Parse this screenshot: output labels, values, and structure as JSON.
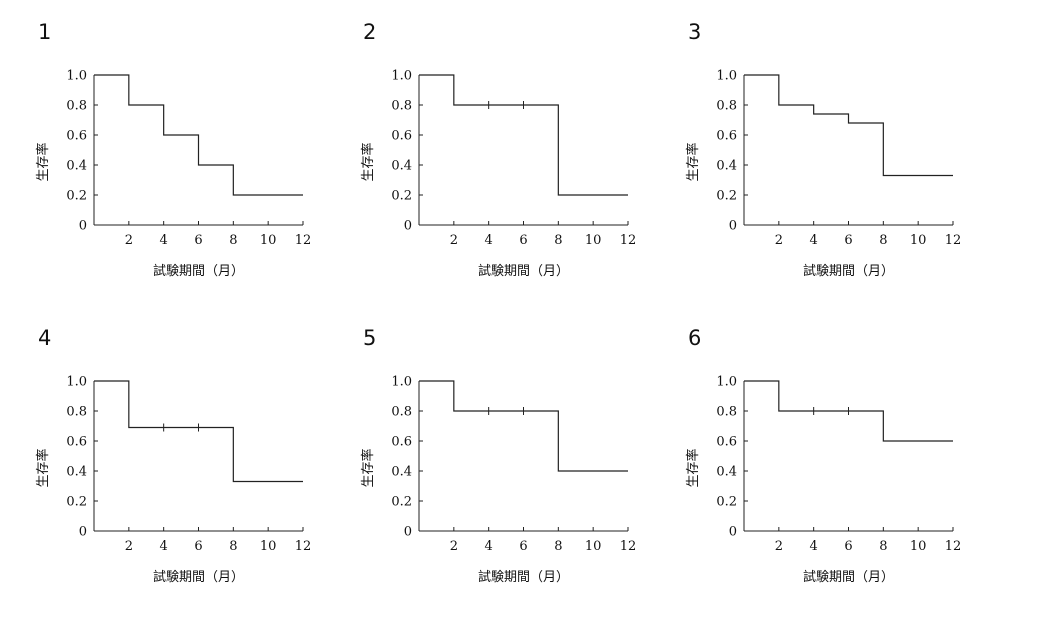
{
  "chart_data": [
    {
      "type": "line",
      "panel_label": "1",
      "xlabel": "試験期間（月）",
      "ylabel": "生存率",
      "xlim": [
        0,
        12
      ],
      "ylim": [
        0,
        1.0
      ],
      "x_ticks": [
        "2",
        "4",
        "6",
        "8",
        "10",
        "12"
      ],
      "y_ticks": [
        "0",
        "0.2",
        "0.4",
        "0.6",
        "0.8",
        "1.0"
      ],
      "step": {
        "x": [
          0,
          2,
          2,
          4,
          4,
          6,
          6,
          8,
          8,
          12
        ],
        "y": [
          1.0,
          1.0,
          0.8,
          0.8,
          0.6,
          0.6,
          0.4,
          0.4,
          0.2,
          0.2
        ]
      },
      "censor_marks": []
    },
    {
      "type": "line",
      "panel_label": "2",
      "xlabel": "試験期間（月）",
      "ylabel": "生存率",
      "xlim": [
        0,
        12
      ],
      "ylim": [
        0,
        1.0
      ],
      "x_ticks": [
        "2",
        "4",
        "6",
        "8",
        "10",
        "12"
      ],
      "y_ticks": [
        "0",
        "0.2",
        "0.4",
        "0.6",
        "0.8",
        "1.0"
      ],
      "step": {
        "x": [
          0,
          2,
          2,
          8,
          8,
          12
        ],
        "y": [
          1.0,
          1.0,
          0.8,
          0.8,
          0.2,
          0.2
        ]
      },
      "censor_marks": [
        {
          "x": 4,
          "y": 0.8
        },
        {
          "x": 6,
          "y": 0.8
        }
      ]
    },
    {
      "type": "line",
      "panel_label": "3",
      "xlabel": "試験期間（月）",
      "ylabel": "生存率",
      "xlim": [
        0,
        12
      ],
      "ylim": [
        0,
        1.0
      ],
      "x_ticks": [
        "2",
        "4",
        "6",
        "8",
        "10",
        "12"
      ],
      "y_ticks": [
        "0",
        "0.2",
        "0.4",
        "0.6",
        "0.8",
        "1.0"
      ],
      "step": {
        "x": [
          0,
          2,
          2,
          4,
          4,
          6,
          6,
          8,
          8,
          12
        ],
        "y": [
          1.0,
          1.0,
          0.8,
          0.8,
          0.74,
          0.74,
          0.68,
          0.68,
          0.33,
          0.33
        ]
      },
      "censor_marks": []
    },
    {
      "type": "line",
      "panel_label": "4",
      "xlabel": "試験期間（月）",
      "ylabel": "生存率",
      "xlim": [
        0,
        12
      ],
      "ylim": [
        0,
        1.0
      ],
      "x_ticks": [
        "2",
        "4",
        "6",
        "8",
        "10",
        "12"
      ],
      "y_ticks": [
        "0",
        "0.2",
        "0.4",
        "0.6",
        "0.8",
        "1.0"
      ],
      "step": {
        "x": [
          0,
          2,
          2,
          8,
          8,
          12
        ],
        "y": [
          1.0,
          1.0,
          0.69,
          0.69,
          0.33,
          0.33
        ]
      },
      "censor_marks": [
        {
          "x": 4,
          "y": 0.69
        },
        {
          "x": 6,
          "y": 0.69
        }
      ]
    },
    {
      "type": "line",
      "panel_label": "5",
      "xlabel": "試験期間（月）",
      "ylabel": "生存率",
      "xlim": [
        0,
        12
      ],
      "ylim": [
        0,
        1.0
      ],
      "x_ticks": [
        "2",
        "4",
        "6",
        "8",
        "10",
        "12"
      ],
      "y_ticks": [
        "0",
        "0.2",
        "0.4",
        "0.6",
        "0.8",
        "1.0"
      ],
      "step": {
        "x": [
          0,
          2,
          2,
          8,
          8,
          12
        ],
        "y": [
          1.0,
          1.0,
          0.8,
          0.8,
          0.4,
          0.4
        ]
      },
      "censor_marks": [
        {
          "x": 4,
          "y": 0.8
        },
        {
          "x": 6,
          "y": 0.8
        }
      ]
    },
    {
      "type": "line",
      "panel_label": "6",
      "xlabel": "試験期間（月）",
      "ylabel": "生存率",
      "xlim": [
        0,
        12
      ],
      "ylim": [
        0,
        1.0
      ],
      "x_ticks": [
        "2",
        "4",
        "6",
        "8",
        "10",
        "12"
      ],
      "y_ticks": [
        "0",
        "0.2",
        "0.4",
        "0.6",
        "0.8",
        "1.0"
      ],
      "step": {
        "x": [
          0,
          2,
          2,
          8,
          8,
          12
        ],
        "y": [
          1.0,
          1.0,
          0.8,
          0.8,
          0.6,
          0.6
        ]
      },
      "censor_marks": [
        {
          "x": 4,
          "y": 0.8
        },
        {
          "x": 6,
          "y": 0.8
        }
      ]
    }
  ]
}
